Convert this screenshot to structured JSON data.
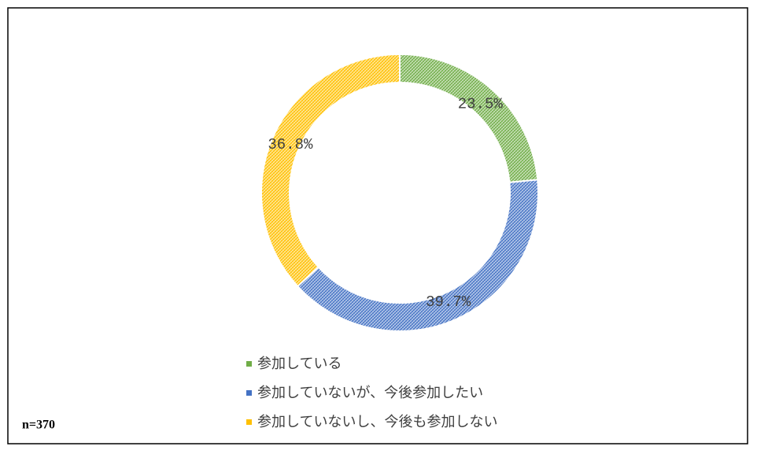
{
  "chart_data": {
    "type": "donut",
    "categories": [
      "参加している",
      "参加していないが、今後参加したい",
      "参加していないし、今後も参加しない"
    ],
    "values": [
      23.5,
      39.7,
      36.8
    ],
    "value_labels": [
      "23.5%",
      "39.7%",
      "36.8%"
    ],
    "colors": [
      "#70ad47",
      "#4472c4",
      "#ffc000"
    ],
    "annotation": "n=370"
  }
}
